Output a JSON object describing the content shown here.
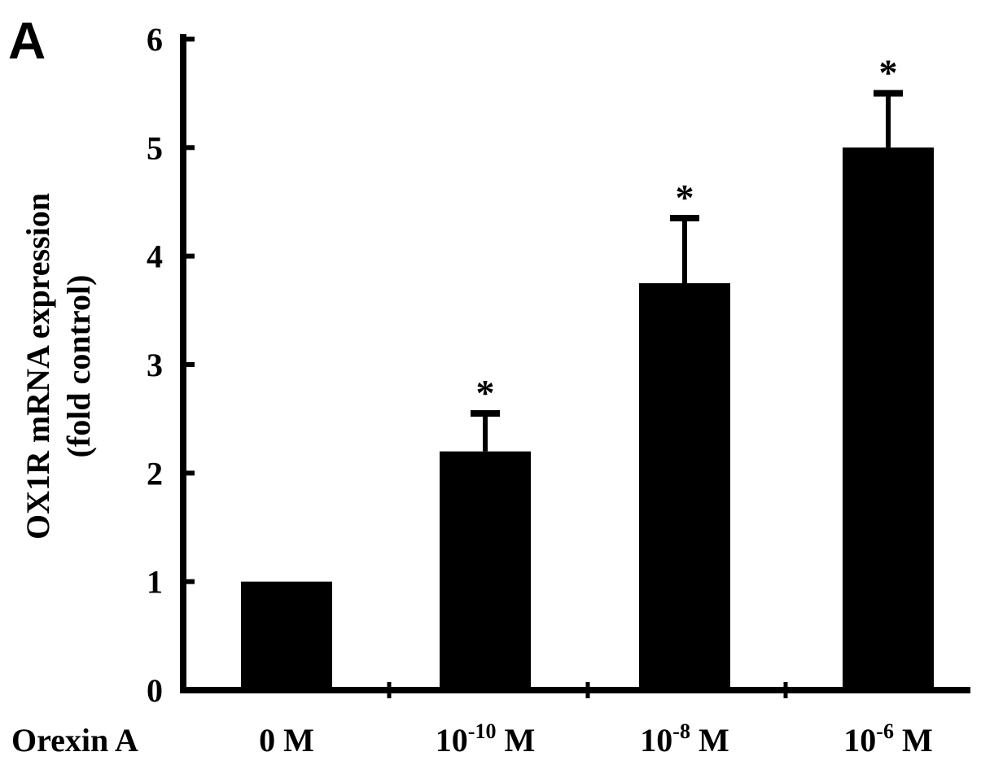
{
  "panel_label": "A",
  "chart_data": {
    "type": "bar",
    "title": "",
    "ylabel_line1": "OX1R mRNA expression",
    "ylabel_line2": "(fold control)",
    "xlabel": "Orexin A",
    "categories": [
      {
        "base": "0 M",
        "exp": "",
        "unit": ""
      },
      {
        "base": "10",
        "exp": "-10",
        "unit": " M"
      },
      {
        "base": "10",
        "exp": "-8",
        "unit": " M"
      },
      {
        "base": "10",
        "exp": "-6",
        "unit": " M"
      }
    ],
    "values": [
      1.0,
      2.2,
      3.75,
      5.0
    ],
    "errors": [
      0.0,
      0.35,
      0.6,
      0.5
    ],
    "significance": [
      "",
      "*",
      "*",
      "*"
    ],
    "ylim": [
      0,
      6
    ],
    "yticks": [
      "0",
      "1",
      "2",
      "3",
      "4",
      "5",
      "6"
    ],
    "bar_color": "#000000",
    "grid": false,
    "legend": "none"
  }
}
